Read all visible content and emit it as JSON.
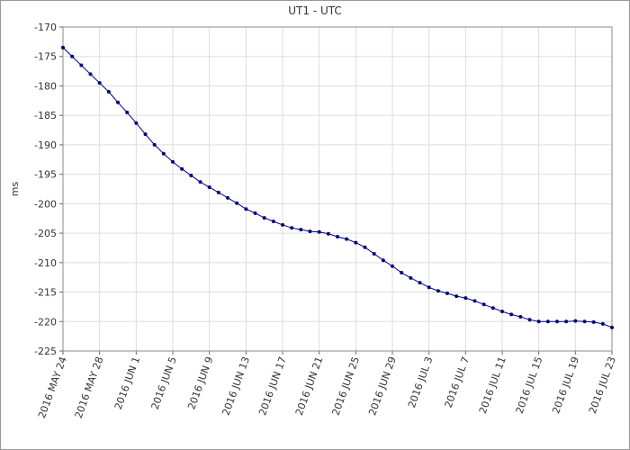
{
  "chart_data": {
    "type": "line",
    "title": "UT1 - UTC",
    "y_label": "ms",
    "x": [
      "2016-05-24",
      "2016-05-25",
      "2016-05-26",
      "2016-05-27",
      "2016-05-28",
      "2016-05-29",
      "2016-05-30",
      "2016-05-31",
      "2016-06-01",
      "2016-06-02",
      "2016-06-03",
      "2016-06-04",
      "2016-06-05",
      "2016-06-06",
      "2016-06-07",
      "2016-06-08",
      "2016-06-09",
      "2016-06-10",
      "2016-06-11",
      "2016-06-12",
      "2016-06-13",
      "2016-06-14",
      "2016-06-15",
      "2016-06-16",
      "2016-06-17",
      "2016-06-18",
      "2016-06-19",
      "2016-06-20",
      "2016-06-21",
      "2016-06-22",
      "2016-06-23",
      "2016-06-24",
      "2016-06-25",
      "2016-06-26",
      "2016-06-27",
      "2016-06-28",
      "2016-06-29",
      "2016-06-30",
      "2016-07-01",
      "2016-07-02",
      "2016-07-03",
      "2016-07-04",
      "2016-07-05",
      "2016-07-06",
      "2016-07-07",
      "2016-07-08",
      "2016-07-09",
      "2016-07-10",
      "2016-07-11",
      "2016-07-12",
      "2016-07-13",
      "2016-07-14",
      "2016-07-15",
      "2016-07-16",
      "2016-07-17",
      "2016-07-18",
      "2016-07-19",
      "2016-07-20",
      "2016-07-21",
      "2016-07-22",
      "2016-07-23"
    ],
    "series": [
      {
        "color": "#000080",
        "values": [
          -173.5,
          -175.0,
          -176.5,
          -178.0,
          -179.5,
          -181.0,
          -182.8,
          -184.5,
          -186.3,
          -188.2,
          -190.0,
          -191.5,
          -192.9,
          -194.1,
          -195.2,
          -196.3,
          -197.2,
          -198.1,
          -199.0,
          -199.9,
          -200.9,
          -201.6,
          -202.4,
          -203.0,
          -203.6,
          -204.1,
          -204.4,
          -204.7,
          -204.8,
          -205.1,
          -205.6,
          -206.0,
          -206.6,
          -207.4,
          -208.5,
          -209.6,
          -210.6,
          -211.7,
          -212.6,
          -213.4,
          -214.2,
          -214.8,
          -215.2,
          -215.7,
          -216.0,
          -216.5,
          -217.1,
          -217.7,
          -218.3,
          -218.8,
          -219.2,
          -219.7,
          -220.0,
          -220.0,
          -220.0,
          -220.0,
          -219.9,
          -220.0,
          -220.1,
          -220.4,
          -221.0
        ]
      }
    ],
    "xlim": [
      "2016-05-24",
      "2016-07-23"
    ],
    "xticks": [
      {
        "value": "2016-05-24",
        "label": "2016 MAY 24"
      },
      {
        "value": "2016-05-28",
        "label": "2016 MAY 28"
      },
      {
        "value": "2016-06-01",
        "label": "2016 JUN 1"
      },
      {
        "value": "2016-06-05",
        "label": "2016 JUN 5"
      },
      {
        "value": "2016-06-09",
        "label": "2016 JUN 9"
      },
      {
        "value": "2016-06-13",
        "label": "2016 JUN 13"
      },
      {
        "value": "2016-06-17",
        "label": "2016 JUN 17"
      },
      {
        "value": "2016-06-21",
        "label": "2016 JUN 21"
      },
      {
        "value": "2016-06-25",
        "label": "2016 JUN 25"
      },
      {
        "value": "2016-06-29",
        "label": "2016 JUN 29"
      },
      {
        "value": "2016-07-03",
        "label": "2016 JUL 3"
      },
      {
        "value": "2016-07-07",
        "label": "2016 JUL 7"
      },
      {
        "value": "2016-07-11",
        "label": "2016 JUL 11"
      },
      {
        "value": "2016-07-15",
        "label": "2016 JUL 15"
      },
      {
        "value": "2016-07-19",
        "label": "2016 JUL 19"
      },
      {
        "value": "2016-07-23",
        "label": "2016 JUL 23"
      }
    ],
    "ylim": [
      -225,
      -170
    ],
    "yticks": [
      -170,
      -175,
      -180,
      -185,
      -190,
      -195,
      -200,
      -205,
      -210,
      -215,
      -220,
      -225
    ],
    "grid": true
  }
}
